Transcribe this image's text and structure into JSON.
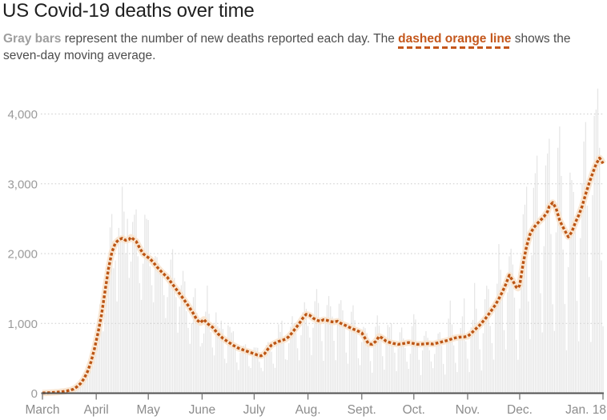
{
  "header": {
    "title": "US Covid-19 deaths over time",
    "subtitle_gray": "Gray bars",
    "subtitle_mid": " represent the number of new deaths reported each day. The ",
    "subtitle_orange": "dashed orange line",
    "subtitle_tail": " shows the seven-day moving average."
  },
  "colors": {
    "accent_orange": "#c4571c",
    "line_orange": "#bc5514",
    "line_halo": "#f8e4cf",
    "bar_gray": "#e6e6e6",
    "axis": "#515151",
    "tick": "#757575",
    "x_label": "#8c8c8c",
    "y_label": "#9b9b9b",
    "gridline": "#cdcdcd",
    "title_text": "#1f1f1f",
    "body_text": "#4d4d4d",
    "gray_bold_text": "#9e9e9e"
  },
  "chart_data": {
    "type": "bar",
    "subtype": "bar-plus-dashed-line-combo",
    "title": "US Covid-19 deaths over time",
    "xlabel": "",
    "ylabel": "",
    "legend_position": "none (explained in subtitle)",
    "grid": "dotted horizontal gridlines at 1,000 intervals",
    "x_axis": {
      "unit": "days since March 1",
      "domain_days": [
        0,
        323
      ],
      "ticks": [
        {
          "label": "March",
          "day": 0
        },
        {
          "label": "April",
          "day": 31
        },
        {
          "label": "May",
          "day": 61
        },
        {
          "label": "June",
          "day": 92
        },
        {
          "label": "July",
          "day": 122
        },
        {
          "label": "Aug.",
          "day": 153
        },
        {
          "label": "Sept.",
          "day": 184
        },
        {
          "label": "Oct.",
          "day": 214
        },
        {
          "label": "Nov.",
          "day": 245
        },
        {
          "label": "Dec.",
          "day": 275
        },
        {
          "label": "Jan. 18",
          "day": 323,
          "align": "end"
        }
      ]
    },
    "y_axis": {
      "range": [
        0,
        4500
      ],
      "ticks": [
        {
          "value": 0,
          "label": "0"
        },
        {
          "value": 1000,
          "label": "1,000"
        },
        {
          "value": 2000,
          "label": "2,000"
        },
        {
          "value": 3000,
          "label": "3,000"
        },
        {
          "value": 4000,
          "label": "4,000"
        }
      ]
    },
    "series": [
      {
        "name": "New deaths reported each day",
        "type": "bar",
        "color": "#e6e6e6",
        "note": "Daily bars oscillate weekly around the seven-day average (tallest bars reach about 4,400 in January; April highs near 2,600; autumn lows near 300). Bars are regenerated deterministically from the moving average using the parameters below.",
        "weekday_factors": [
          0.66,
          0.5,
          0.92,
          1.2,
          1.3,
          1.24,
          0.95
        ],
        "amp_base": 0.5,
        "amp_per_day": 0.003,
        "jitter_base": 0.86,
        "jitter_span": 0.28,
        "spike_chance": 0.07,
        "spike_factor": 1.33,
        "max_value": 4460
      },
      {
        "name": "Seven-day moving average",
        "type": "line",
        "style": "dashed",
        "color": "#bc5514",
        "points": [
          [
            0,
            4
          ],
          [
            3,
            6
          ],
          [
            6,
            10
          ],
          [
            9,
            16
          ],
          [
            12,
            24
          ],
          [
            14,
            32
          ],
          [
            16,
            42
          ],
          [
            18,
            60
          ],
          [
            20,
            95
          ],
          [
            22,
            140
          ],
          [
            24,
            210
          ],
          [
            26,
            310
          ],
          [
            28,
            450
          ],
          [
            30,
            640
          ],
          [
            32,
            860
          ],
          [
            34,
            1120
          ],
          [
            36,
            1450
          ],
          [
            38,
            1780
          ],
          [
            40,
            2020
          ],
          [
            42,
            2150
          ],
          [
            44,
            2200
          ],
          [
            46,
            2220
          ],
          [
            48,
            2190
          ],
          [
            50,
            2205
          ],
          [
            51,
            2235
          ],
          [
            52,
            2215
          ],
          [
            54,
            2175
          ],
          [
            56,
            2080
          ],
          [
            58,
            2000
          ],
          [
            60,
            1960
          ],
          [
            62,
            1925
          ],
          [
            64,
            1870
          ],
          [
            66,
            1810
          ],
          [
            69,
            1730
          ],
          [
            72,
            1660
          ],
          [
            75,
            1560
          ],
          [
            78,
            1460
          ],
          [
            81,
            1360
          ],
          [
            84,
            1255
          ],
          [
            87,
            1140
          ],
          [
            89,
            1050
          ],
          [
            91,
            1010
          ],
          [
            93,
            1058
          ],
          [
            95,
            1000
          ],
          [
            98,
            945
          ],
          [
            101,
            855
          ],
          [
            104,
            785
          ],
          [
            107,
            735
          ],
          [
            110,
            685
          ],
          [
            113,
            645
          ],
          [
            116,
            618
          ],
          [
            119,
            590
          ],
          [
            122,
            565
          ],
          [
            124,
            545
          ],
          [
            126,
            535
          ],
          [
            128,
            565
          ],
          [
            130,
            635
          ],
          [
            132,
            690
          ],
          [
            134,
            718
          ],
          [
            136,
            740
          ],
          [
            138,
            755
          ],
          [
            140,
            775
          ],
          [
            142,
            812
          ],
          [
            144,
            870
          ],
          [
            146,
            935
          ],
          [
            148,
            1000
          ],
          [
            150,
            1075
          ],
          [
            152,
            1130
          ],
          [
            154,
            1118
          ],
          [
            156,
            1075
          ],
          [
            158,
            1048
          ],
          [
            160,
            1030
          ],
          [
            162,
            1052
          ],
          [
            164,
            1044
          ],
          [
            166,
            1026
          ],
          [
            168,
            1020
          ],
          [
            170,
            1032
          ],
          [
            172,
            1000
          ],
          [
            175,
            966
          ],
          [
            178,
            930
          ],
          [
            181,
            900
          ],
          [
            184,
            864
          ],
          [
            186,
            782
          ],
          [
            188,
            706
          ],
          [
            190,
            700
          ],
          [
            192,
            742
          ],
          [
            194,
            815
          ],
          [
            196,
            786
          ],
          [
            198,
            746
          ],
          [
            200,
            728
          ],
          [
            202,
            714
          ],
          [
            205,
            700
          ],
          [
            208,
            712
          ],
          [
            211,
            726
          ],
          [
            213,
            716
          ],
          [
            216,
            700
          ],
          [
            219,
            704
          ],
          [
            222,
            712
          ],
          [
            225,
            704
          ],
          [
            228,
            722
          ],
          [
            231,
            740
          ],
          [
            234,
            760
          ],
          [
            237,
            788
          ],
          [
            240,
            802
          ],
          [
            243,
            806
          ],
          [
            245,
            815
          ],
          [
            247,
            855
          ],
          [
            249,
            905
          ],
          [
            252,
            975
          ],
          [
            255,
            1060
          ],
          [
            258,
            1160
          ],
          [
            261,
            1265
          ],
          [
            263,
            1355
          ],
          [
            265,
            1450
          ],
          [
            267,
            1560
          ],
          [
            269,
            1690
          ],
          [
            271,
            1612
          ],
          [
            273,
            1520
          ],
          [
            274,
            1505
          ],
          [
            275,
            1550
          ],
          [
            277,
            1860
          ],
          [
            279,
            2105
          ],
          [
            281,
            2280
          ],
          [
            283,
            2368
          ],
          [
            285,
            2428
          ],
          [
            287,
            2478
          ],
          [
            289,
            2530
          ],
          [
            291,
            2600
          ],
          [
            292,
            2675
          ],
          [
            294,
            2730
          ],
          [
            296,
            2645
          ],
          [
            298,
            2480
          ],
          [
            299,
            2425
          ],
          [
            301,
            2330
          ],
          [
            303,
            2240
          ],
          [
            305,
            2310
          ],
          [
            307,
            2440
          ],
          [
            309,
            2550
          ],
          [
            311,
            2680
          ],
          [
            313,
            2850
          ],
          [
            315,
            3010
          ],
          [
            317,
            3150
          ],
          [
            319,
            3280
          ],
          [
            321,
            3370
          ],
          [
            322,
            3340
          ],
          [
            323,
            3290
          ]
        ]
      }
    ]
  }
}
